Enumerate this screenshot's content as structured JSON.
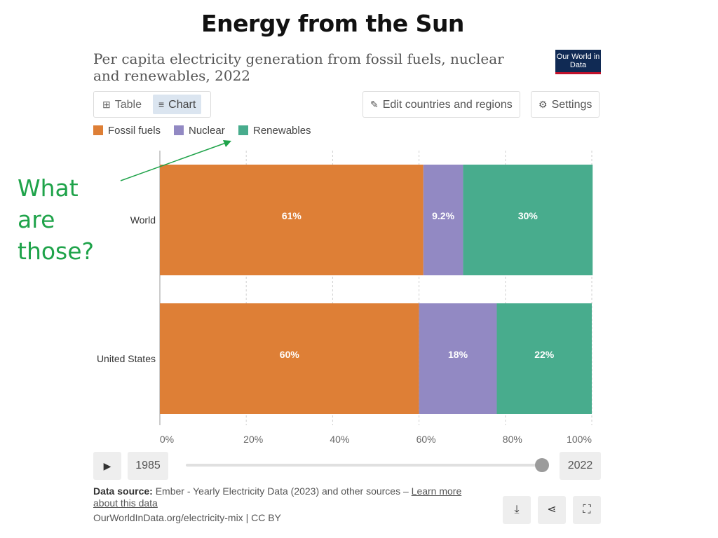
{
  "slide": {
    "title": "Energy from the Sun",
    "annotation": "What are those?"
  },
  "header": {
    "chart_title": "Per capita electricity generation from fossil fuels, nuclear and renewables, 2022",
    "logo_text": "Our World in Data"
  },
  "controls": {
    "table_tab": "Table",
    "chart_tab": "Chart",
    "edit_button": "Edit countries and regions",
    "settings_button": "Settings"
  },
  "timeline": {
    "start_year": "1985",
    "end_year": "2022"
  },
  "footer": {
    "source_label": "Data source:",
    "source_text": "Ember - Yearly Electricity Data (2023) and other sources –",
    "learn_more": "Learn more about this data",
    "url": "OurWorldInData.org/electricity-mix | CC BY"
  },
  "icons": {
    "table": "table-icon",
    "chart": "chart-icon",
    "edit": "pencil-icon",
    "settings": "gear-icon",
    "play": "play-icon",
    "download": "download-icon",
    "share": "share-icon",
    "fullscreen": "fullscreen-icon"
  },
  "colors": {
    "fossil": "#de7f36",
    "nuclear": "#9289c3",
    "renewables": "#48ac8d",
    "annotation": "#1fa34a"
  },
  "chart_data": {
    "type": "bar",
    "orientation": "horizontal",
    "stacked": true,
    "categories": [
      "World",
      "United States"
    ],
    "series": [
      {
        "name": "Fossil fuels",
        "values": [
          61,
          60
        ],
        "labels": [
          "61%",
          "60%"
        ],
        "color": "#de7f36"
      },
      {
        "name": "Nuclear",
        "values": [
          9.2,
          18
        ],
        "labels": [
          "9.2%",
          "18%"
        ],
        "color": "#9289c3"
      },
      {
        "name": "Renewables",
        "values": [
          30,
          22
        ],
        "labels": [
          "30%",
          "22%"
        ],
        "color": "#48ac8d"
      }
    ],
    "xlim": [
      0,
      100
    ],
    "xticks": [
      "0%",
      "20%",
      "40%",
      "60%",
      "80%",
      "100%"
    ],
    "grid": true,
    "legend_position": "top-left"
  }
}
